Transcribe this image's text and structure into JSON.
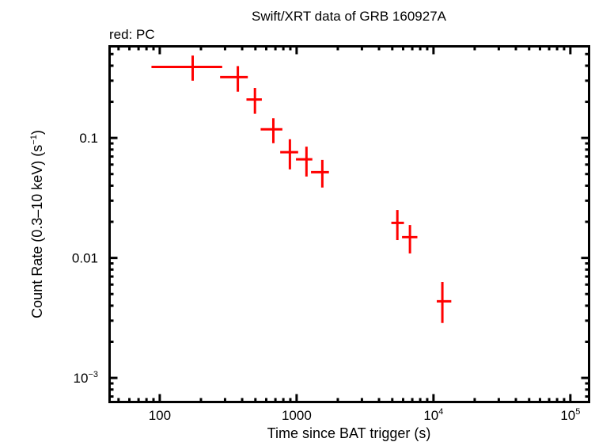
{
  "chart_data": {
    "type": "scatter",
    "title": "Swift/XRT data of GRB 160927A",
    "subtitle": "red: PC",
    "xlabel": "Time since BAT trigger (s)",
    "ylabel": "Count Rate (0.3–10 keV) (s",
    "ylabel_sup": "−1",
    "ylabel_end": ")",
    "xscale": "log",
    "yscale": "log",
    "xlim": [
      43,
      137000
    ],
    "ylim": [
      0.00063,
      0.58
    ],
    "grid": false,
    "x_ticks": [
      {
        "value": 100,
        "base": "100",
        "exp": ""
      },
      {
        "value": 1000,
        "base": "1000",
        "exp": ""
      },
      {
        "value": 10000,
        "base": "10",
        "exp": "4"
      },
      {
        "value": 100000,
        "base": "10",
        "exp": "5"
      }
    ],
    "y_ticks": [
      {
        "value": 0.1,
        "base": "0.1",
        "exp": ""
      },
      {
        "value": 0.01,
        "base": "0.01",
        "exp": ""
      },
      {
        "value": 0.001,
        "base": "10",
        "exp": "−3"
      }
    ],
    "series": [
      {
        "color": "#ff0000",
        "points": [
          {
            "x": 174,
            "xlo": 87,
            "xhi": 286,
            "y": 0.391,
            "ylo": 0.3,
            "yhi": 0.486
          },
          {
            "x": 372,
            "xlo": 276,
            "xhi": 440,
            "y": 0.321,
            "ylo": 0.243,
            "yhi": 0.397
          },
          {
            "x": 496,
            "xlo": 430,
            "xhi": 557,
            "y": 0.209,
            "ylo": 0.159,
            "yhi": 0.261
          },
          {
            "x": 676,
            "xlo": 546,
            "xhi": 787,
            "y": 0.118,
            "ylo": 0.0904,
            "yhi": 0.146
          },
          {
            "x": 893,
            "xlo": 759,
            "xhi": 1026,
            "y": 0.0761,
            "ylo": 0.0547,
            "yhi": 0.0975
          },
          {
            "x": 1180,
            "xlo": 989,
            "xhi": 1303,
            "y": 0.0663,
            "ylo": 0.0477,
            "yhi": 0.0846
          },
          {
            "x": 1541,
            "xlo": 1274,
            "xhi": 1722,
            "y": 0.0518,
            "ylo": 0.0386,
            "yhi": 0.0656
          },
          {
            "x": 5445,
            "xlo": 4920,
            "xhi": 6086,
            "y": 0.0196,
            "ylo": 0.0141,
            "yhi": 0.0251
          },
          {
            "x": 6730,
            "xlo": 5890,
            "xhi": 7625,
            "y": 0.0149,
            "ylo": 0.0109,
            "yhi": 0.0188
          },
          {
            "x": 11610,
            "xlo": 10570,
            "xhi": 13490,
            "y": 0.00435,
            "ylo": 0.00287,
            "yhi": 0.0063
          }
        ]
      }
    ]
  }
}
